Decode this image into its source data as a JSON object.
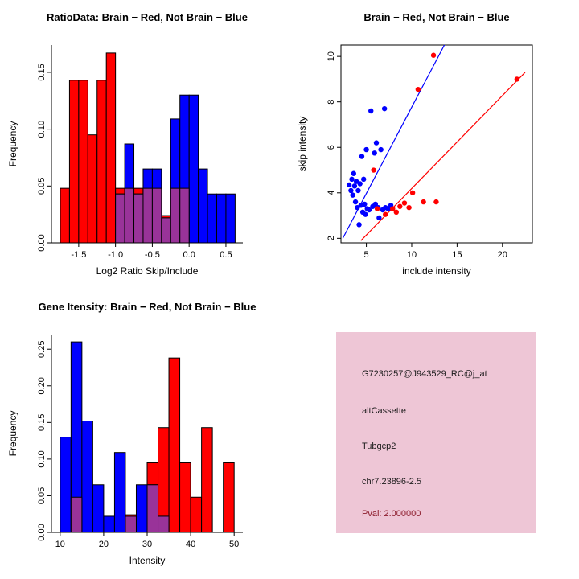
{
  "chart_data": [
    {
      "id": "ratio_hist",
      "type": "bar",
      "frame": "L",
      "title": "RatioData: Brain − Red, Not Brain − Blue",
      "xlabel": "Log2 Ratio Skip/Include",
      "ylabel": "Frequency",
      "xlim": [
        -1.87,
        0.73
      ],
      "ylim": [
        0,
        0.174
      ],
      "xtick_vals": [
        -1.5,
        -1.0,
        -0.5,
        0.0,
        0.5
      ],
      "xtick_labels": [
        "-1.5",
        "-1.0",
        "-0.5",
        "0.0",
        "0.5"
      ],
      "ytick_vals": [
        0.0,
        0.05,
        0.1,
        0.15
      ],
      "ytick_labels": [
        "0.00",
        "0.05",
        "0.10",
        "0.15"
      ],
      "bin_width": 0.125,
      "overlap_color": "#993399",
      "grid": false,
      "series": [
        {
          "name": "brain-red",
          "color": "#ff0000",
          "bars": [
            [
              -1.75,
              0.048
            ],
            [
              -1.625,
              0.143
            ],
            [
              -1.5,
              0.143
            ],
            [
              -1.375,
              0.095
            ],
            [
              -1.25,
              0.143
            ],
            [
              -1.125,
              0.167
            ],
            [
              -1.0,
              0.048
            ],
            [
              -0.875,
              0.048
            ],
            [
              -0.75,
              0.048
            ],
            [
              -0.625,
              0.048
            ],
            [
              -0.5,
              0.048
            ],
            [
              -0.375,
              0.024
            ],
            [
              -0.25,
              0.048
            ],
            [
              -0.125,
              0.048
            ]
          ]
        },
        {
          "name": "notbrain-blue",
          "color": "#0000ff",
          "bars": [
            [
              -1.0,
              0.043
            ],
            [
              -0.875,
              0.087
            ],
            [
              -0.75,
              0.043
            ],
            [
              -0.625,
              0.065
            ],
            [
              -0.5,
              0.065
            ],
            [
              -0.375,
              0.022
            ],
            [
              -0.25,
              0.109
            ],
            [
              -0.125,
              0.13
            ],
            [
              0.0,
              0.13
            ],
            [
              0.125,
              0.065
            ],
            [
              0.25,
              0.043
            ],
            [
              0.375,
              0.043
            ],
            [
              0.5,
              0.043
            ]
          ]
        }
      ]
    },
    {
      "id": "intensity_scatter",
      "type": "scatter",
      "frame": "box",
      "title": "Brain − Red, Not Brain − Blue",
      "xlabel": "include intensity",
      "ylabel": "skip intensity",
      "xlim": [
        2.2,
        23.3
      ],
      "ylim": [
        1.8,
        10.5
      ],
      "xtick_vals": [
        5,
        10,
        15,
        20
      ],
      "xtick_labels": [
        "5",
        "10",
        "15",
        "20"
      ],
      "ytick_vals": [
        2,
        4,
        6,
        8,
        10
      ],
      "ytick_labels": [
        "2",
        "4",
        "6",
        "8",
        "10"
      ],
      "grid": false,
      "series": [
        {
          "name": "notbrain-blue",
          "color": "#0000ff",
          "line": [
            [
              2.4,
              2.0
            ],
            [
              13.6,
              10.5
            ]
          ],
          "points": [
            [
              3.1,
              4.35
            ],
            [
              3.3,
              4.1
            ],
            [
              3.4,
              4.6
            ],
            [
              3.5,
              3.9
            ],
            [
              3.6,
              4.85
            ],
            [
              3.7,
              4.3
            ],
            [
              3.8,
              3.6
            ],
            [
              3.9,
              4.5
            ],
            [
              4.0,
              3.35
            ],
            [
              4.1,
              4.1
            ],
            [
              4.2,
              2.6
            ],
            [
              4.3,
              4.4
            ],
            [
              4.4,
              3.45
            ],
            [
              4.5,
              5.6
            ],
            [
              4.6,
              3.15
            ],
            [
              4.7,
              4.6
            ],
            [
              4.8,
              3.5
            ],
            [
              4.9,
              3.05
            ],
            [
              5.0,
              5.9
            ],
            [
              5.1,
              3.3
            ],
            [
              5.3,
              3.25
            ],
            [
              5.5,
              7.6
            ],
            [
              5.7,
              3.4
            ],
            [
              5.9,
              5.75
            ],
            [
              6.0,
              3.5
            ],
            [
              6.1,
              6.2
            ],
            [
              6.3,
              3.35
            ],
            [
              6.4,
              2.9
            ],
            [
              6.6,
              5.9
            ],
            [
              6.8,
              3.25
            ],
            [
              7.0,
              7.7
            ],
            [
              7.1,
              3.35
            ],
            [
              7.4,
              3.3
            ],
            [
              7.7,
              3.45
            ]
          ]
        },
        {
          "name": "brain-red",
          "color": "#ff0000",
          "line": [
            [
              4.4,
              1.9
            ],
            [
              22.5,
              9.3
            ]
          ],
          "points": [
            [
              5.8,
              5.0
            ],
            [
              6.2,
              3.3
            ],
            [
              7.1,
              3.05
            ],
            [
              7.9,
              3.3
            ],
            [
              8.3,
              3.15
            ],
            [
              8.7,
              3.4
            ],
            [
              9.2,
              3.55
            ],
            [
              9.7,
              3.35
            ],
            [
              10.1,
              4.0
            ],
            [
              10.7,
              8.55
            ],
            [
              11.3,
              3.6
            ],
            [
              12.4,
              10.05
            ],
            [
              12.7,
              3.6
            ],
            [
              21.6,
              9.0
            ]
          ]
        }
      ]
    },
    {
      "id": "gene_hist",
      "type": "bar",
      "frame": "L",
      "title": "Gene Itensity: Brain − Red, Not Brain − Blue",
      "xlabel": "Intensity",
      "ylabel": "Frequency",
      "xlim": [
        8,
        52
      ],
      "ylim": [
        0,
        0.27
      ],
      "xtick_vals": [
        10,
        20,
        30,
        40,
        50
      ],
      "xtick_labels": [
        "10",
        "20",
        "30",
        "40",
        "50"
      ],
      "ytick_vals": [
        0.0,
        0.05,
        0.1,
        0.15,
        0.2,
        0.25
      ],
      "ytick_labels": [
        "0.00",
        "0.05",
        "0.10",
        "0.15",
        "0.20",
        "0.25"
      ],
      "bin_width": 2.5,
      "overlap_color": "#993399",
      "grid": false,
      "series": [
        {
          "name": "brain-red",
          "color": "#ff0000",
          "bars": [
            [
              12.5,
              0.048
            ],
            [
              25,
              0.024
            ],
            [
              30,
              0.095
            ],
            [
              32.5,
              0.143
            ],
            [
              35,
              0.238
            ],
            [
              37.5,
              0.095
            ],
            [
              40,
              0.048
            ],
            [
              42.5,
              0.143
            ],
            [
              47.5,
              0.095
            ]
          ]
        },
        {
          "name": "notbrain-blue",
          "color": "#0000ff",
          "bars": [
            [
              10,
              0.13
            ],
            [
              12.5,
              0.26
            ],
            [
              15,
              0.152
            ],
            [
              17.5,
              0.065
            ],
            [
              20,
              0.022
            ],
            [
              22.5,
              0.109
            ],
            [
              25,
              0.022
            ],
            [
              27.5,
              0.065
            ],
            [
              30,
              0.065
            ],
            [
              32.5,
              0.022
            ]
          ]
        }
      ]
    }
  ],
  "info_box": {
    "bg": "#eec6d6",
    "text_color": "#1a1a1a",
    "pval_color": "#8b1a2a",
    "probe_id": "G7230257@J943529_RC@j_at",
    "splice_type": "altCassette",
    "gene": "Tubgcp2",
    "locus": "chr7.23896-2.5",
    "pval": "Pval: 2.000000"
  },
  "colors": {
    "brain": "#ff0000",
    "not_brain": "#0000ff",
    "overlap": "#993399",
    "background": "#ffffff"
  }
}
